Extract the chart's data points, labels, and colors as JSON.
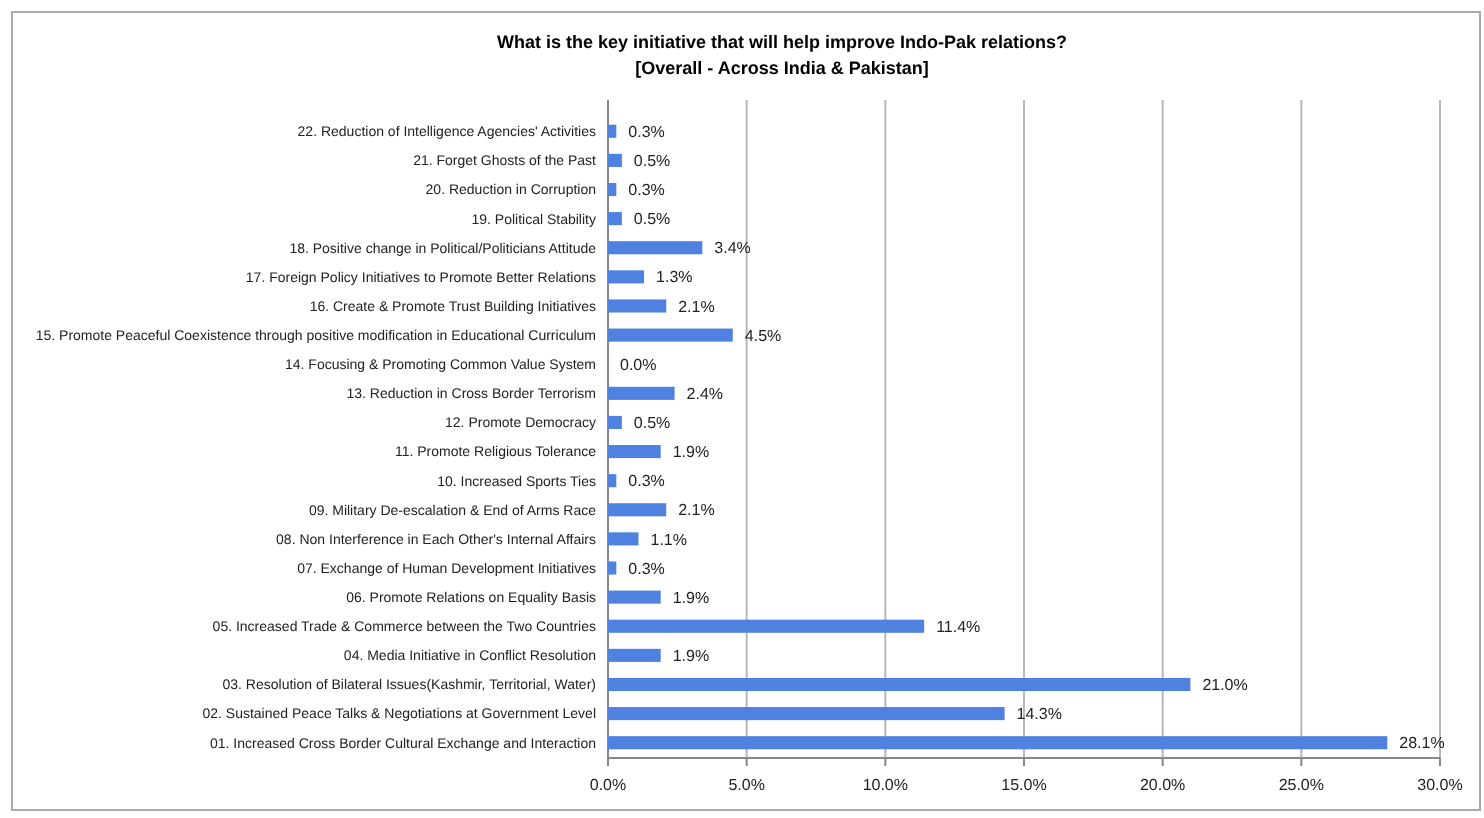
{
  "chart_data": {
    "type": "bar",
    "orientation": "horizontal",
    "title": "What is the key initiative that will help improve Indo-Pak relations?",
    "subtitle": "[Overall - Across India & Pakistan]",
    "categories": [
      "22. Reduction of Intelligence Agencies' Activities",
      "21. Forget Ghosts of the Past",
      "20. Reduction in Corruption",
      "19. Political Stability",
      "18. Positive change in Political/Politicians Attitude",
      "17. Foreign Policy Initiatives to Promote Better Relations",
      "16. Create & Promote Trust Building Initiatives",
      "15. Promote Peaceful Coexistence through positive modification in Educational Curriculum",
      "14. Focusing & Promoting Common Value System",
      "13. Reduction in Cross Border Terrorism",
      "12. Promote Democracy",
      "11. Promote Religious Tolerance",
      "10. Increased Sports Ties",
      "09. Military De-escalation & End of Arms Race",
      "08. Non Interference in Each Other's Internal Affairs",
      "07. Exchange of Human Development Initiatives",
      "06. Promote Relations on Equality Basis",
      "05. Increased Trade & Commerce between the Two Countries",
      "04. Media Initiative in Conflict Resolution",
      "03. Resolution of Bilateral Issues(Kashmir, Territorial, Water)",
      "02. Sustained Peace Talks & Negotiations at Government Level",
      "01. Increased Cross Border Cultural Exchange and Interaction"
    ],
    "values": [
      0.3,
      0.5,
      0.3,
      0.5,
      3.4,
      1.3,
      2.1,
      4.5,
      0.0,
      2.4,
      0.5,
      1.9,
      0.3,
      2.1,
      1.1,
      0.3,
      1.9,
      11.4,
      1.9,
      21.0,
      14.3,
      28.1
    ],
    "value_labels": [
      "0.3%",
      "0.5%",
      "0.3%",
      "0.5%",
      "3.4%",
      "1.3%",
      "2.1%",
      "4.5%",
      "0.0%",
      "2.4%",
      "0.5%",
      "1.9%",
      "0.3%",
      "2.1%",
      "1.1%",
      "0.3%",
      "1.9%",
      "11.4%",
      "1.9%",
      "21.0%",
      "14.3%",
      "28.1%"
    ],
    "color": "#4f81e0",
    "xlim": [
      0,
      30
    ],
    "xticks": [
      {
        "value": 0,
        "label": "0.0%"
      },
      {
        "value": 5,
        "label": "5.0%"
      },
      {
        "value": 10,
        "label": "10.0%"
      },
      {
        "value": 15,
        "label": "15.0%"
      },
      {
        "value": 20,
        "label": "20.0%"
      },
      {
        "value": 25,
        "label": "25.0%"
      },
      {
        "value": 30,
        "label": "30.0%"
      }
    ],
    "grid": "x"
  }
}
